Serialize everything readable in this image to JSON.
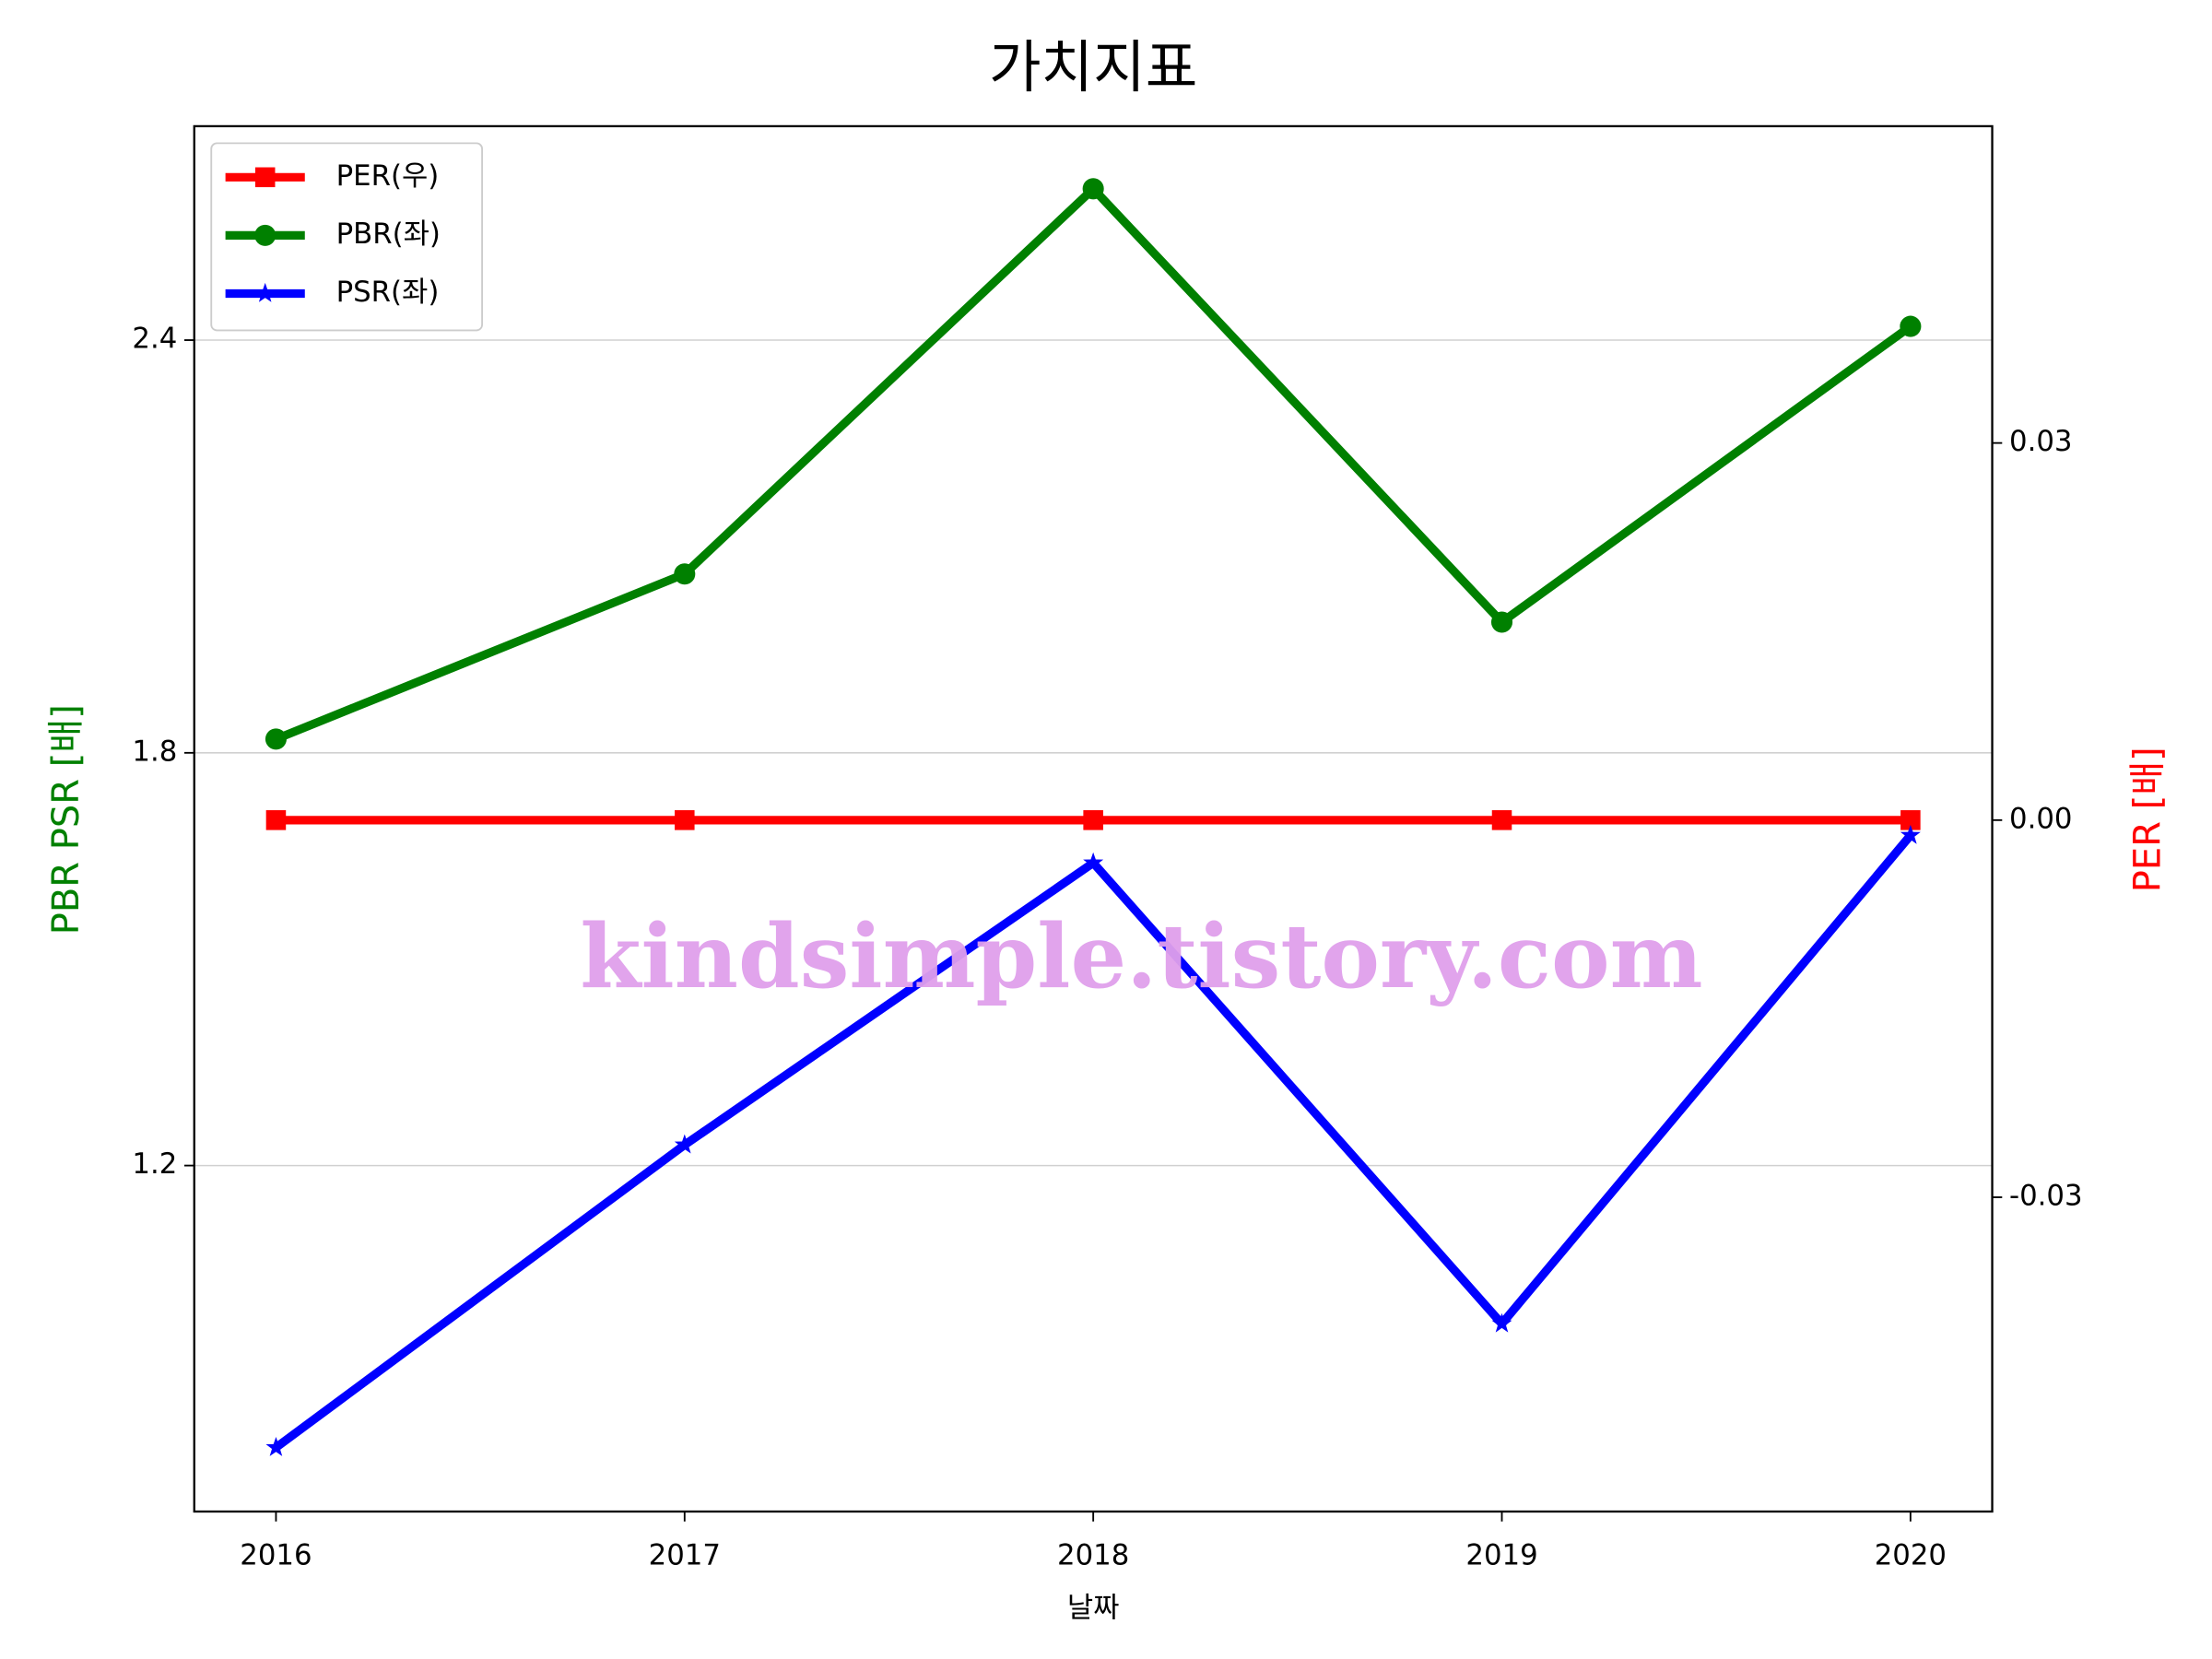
{
  "chart_data": {
    "type": "line",
    "title": "가치지표",
    "xlabel": "날짜",
    "ylabel": "PBR PSR [배]",
    "y2label": "PER [배]",
    "watermark": "kindsimple.tistory.com",
    "x": [
      2016,
      2017,
      2018,
      2019,
      2020
    ],
    "xlim": [
      2015.8,
      2020.2
    ],
    "xticks": [
      2016,
      2017,
      2018,
      2019,
      2020
    ],
    "ylim": [
      0.697,
      2.711
    ],
    "yticks": [
      1.2,
      1.8,
      2.4
    ],
    "y2lim": [
      -0.055,
      0.0552
    ],
    "y2ticks": [
      {
        "value": -0.03,
        "label": "-0.03"
      },
      {
        "value": 0,
        "label": "0.00"
      },
      {
        "value": 0.03,
        "label": "0.03"
      }
    ],
    "grid": true,
    "legend": "upper left",
    "series": [
      {
        "name": "PER(우)",
        "color": "#ff0000",
        "marker": "square",
        "axis": "y2",
        "values": [
          0,
          0,
          0,
          0,
          0
        ]
      },
      {
        "name": "PBR(좌)",
        "color": "#008000",
        "marker": "circle",
        "values": [
          1.82,
          2.06,
          2.62,
          1.99,
          2.42
        ]
      },
      {
        "name": "PSR(좌)",
        "color": "#0000ff",
        "marker": "star",
        "values": [
          0.79,
          1.23,
          1.64,
          0.97,
          1.68
        ]
      }
    ]
  }
}
